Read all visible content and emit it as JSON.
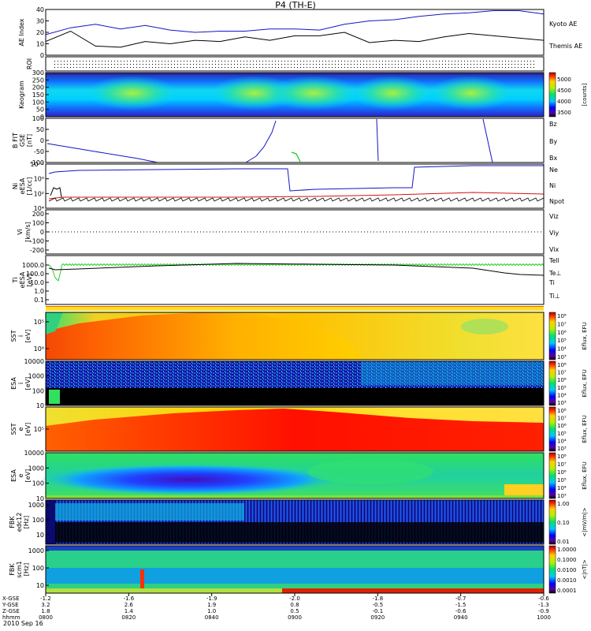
{
  "title": "P4 (TH-E)",
  "date": "2010 Sep 16",
  "colors": {
    "blue": "#1414c8",
    "red": "#d21414",
    "green": "#14c814",
    "black": "#000000"
  },
  "chart_data": [
    {
      "type": "line",
      "panel": "ae",
      "ylabel": "AE Index",
      "ylim": [
        0,
        40
      ],
      "yticks": [
        "0",
        "10",
        "20",
        "30",
        "40"
      ],
      "series": [
        {
          "name": "Kyoto AE",
          "color": "blue",
          "x": [
            "09:00",
            "09:03",
            "09:06",
            "09:09",
            "09:12",
            "09:15",
            "09:18",
            "09:21",
            "09:24",
            "09:27",
            "09:30",
            "09:33",
            "09:36",
            "09:39",
            "09:42",
            "09:45",
            "09:48",
            "09:51",
            "09:54",
            "09:57",
            "10:00"
          ],
          "values": [
            18,
            24,
            27,
            23,
            26,
            22,
            20,
            21,
            21,
            23,
            23,
            22,
            27,
            30,
            31,
            34,
            36,
            37,
            39,
            39,
            36
          ]
        },
        {
          "name": "Themis AE",
          "color": "black",
          "x": [
            "09:00",
            "09:03",
            "09:06",
            "09:09",
            "09:12",
            "09:15",
            "09:18",
            "09:21",
            "09:24",
            "09:27",
            "09:30",
            "09:33",
            "09:36",
            "09:39",
            "09:42",
            "09:45",
            "09:48",
            "09:51",
            "09:54",
            "09:57",
            "10:00"
          ],
          "values": [
            12,
            21,
            8,
            7,
            12,
            10,
            13,
            12,
            16,
            13,
            17,
            17,
            20,
            11,
            13,
            12,
            16,
            19,
            17,
            15,
            13
          ]
        }
      ]
    },
    {
      "type": "table",
      "panel": "roi",
      "ylabel": "ROI"
    },
    {
      "type": "heatmap",
      "panel": "keogram",
      "ylabel": "Keogram",
      "yticks": [
        "0",
        "50",
        "100",
        "150",
        "200",
        "250",
        "300"
      ],
      "colorbar": [
        "3500",
        "4000",
        "4500",
        "5000"
      ],
      "colorbar_label": "[counts]"
    },
    {
      "type": "line",
      "panel": "bfield",
      "ylabel": "B FIT GSE [nT]",
      "ylim": [
        -100,
        100
      ],
      "yticks": [
        "-100",
        "-50",
        "0",
        "50",
        "100"
      ],
      "series": [
        {
          "name": "Bz",
          "color": "red"
        },
        {
          "name": "By",
          "color": "green"
        },
        {
          "name": "Bx",
          "color": "blue"
        }
      ]
    },
    {
      "type": "line",
      "panel": "density",
      "ylabel": "Ni eESA [1/cc]",
      "yticks": [
        "10⁴",
        "10²",
        "10⁰",
        "10⁻²"
      ],
      "series": [
        {
          "name": "Ne",
          "color": "red"
        },
        {
          "name": "Ni",
          "color": "black"
        },
        {
          "name": "Npot",
          "color": "blue"
        }
      ]
    },
    {
      "type": "line",
      "panel": "velocity",
      "ylabel": "Vi [km/s]",
      "ylim": [
        -300,
        300
      ],
      "yticks": [
        "-200",
        "-100",
        "0",
        "100",
        "200"
      ],
      "series": [
        {
          "name": "Viz",
          "color": "red"
        },
        {
          "name": "Viy",
          "color": "green"
        },
        {
          "name": "Vix",
          "color": "blue"
        }
      ]
    },
    {
      "type": "line",
      "panel": "temperature",
      "ylabel": "Ti eESA [eV]",
      "yticks": [
        "1000.0",
        "100.0",
        "10.0",
        "1.0",
        "0.1"
      ],
      "series": [
        {
          "name": "Tell",
          "color": "black"
        },
        {
          "name": "Te⊥",
          "color": "red"
        },
        {
          "name": "Ti",
          "color": "green"
        },
        {
          "name": "Ti⊥",
          "color": "blue"
        }
      ]
    },
    {
      "type": "heatmap",
      "panel": "sst_i",
      "ylabel": "SST i [eV]",
      "yticks": [
        "10⁵",
        "10⁶"
      ],
      "colorbar": [
        "10³",
        "10⁴",
        "10⁵",
        "10⁶",
        "10⁷",
        "10⁸"
      ],
      "colorbar_label": "Eflux, EFU"
    },
    {
      "type": "heatmap",
      "panel": "esa_i",
      "ylabel": "ESA i [eV]",
      "yticks": [
        "10",
        "100",
        "1000",
        "10000"
      ],
      "colorbar": [
        "10³",
        "10⁴",
        "10⁵",
        "10⁶",
        "10⁷",
        "10⁸"
      ],
      "colorbar_label": "Eflux, EFU"
    },
    {
      "type": "heatmap",
      "panel": "sst_e",
      "ylabel": "SST e [eV]",
      "yticks": [
        "10⁵"
      ],
      "colorbar": [
        "10³",
        "10⁴",
        "10⁵",
        "10⁶",
        "10⁷",
        "10⁸"
      ],
      "colorbar_label": "Eflux, EFU"
    },
    {
      "type": "heatmap",
      "panel": "esa_e",
      "ylabel": "ESA e [eV]",
      "yticks": [
        "10",
        "100",
        "1000",
        "10000"
      ],
      "colorbar": [
        "10³",
        "10⁴",
        "10⁵",
        "10⁶",
        "10⁷",
        "10⁸"
      ],
      "colorbar_label": "Eflux, EFU"
    },
    {
      "type": "heatmap",
      "panel": "fbk_e",
      "ylabel": "FBK edc12 [Hz]",
      "yticks": [
        "10",
        "100",
        "1000"
      ],
      "colorbar": [
        "0.01",
        "0.10",
        "1.00"
      ],
      "colorbar_label": "<|mV/m|>"
    },
    {
      "type": "heatmap",
      "panel": "fbk_b",
      "ylabel": "FBK scm1 [Hz]",
      "yticks": [
        "10",
        "100",
        "1000"
      ],
      "colorbar": [
        "0.0001",
        "0.0010",
        "0.0100",
        "0.1000",
        "1.0000"
      ],
      "colorbar_label": "<|nT|>"
    }
  ],
  "time_axis": {
    "rows": [
      {
        "label": "X-GSE",
        "values": [
          "-1.2",
          "-1.6",
          "-1.9",
          "-2.0",
          "-1.8",
          "-0.7",
          "-0.6"
        ]
      },
      {
        "label": "Y-GSE",
        "values": [
          "3.2",
          "2.6",
          "1.9",
          "0.8",
          "-0.5",
          "-1.5",
          "-1.3"
        ]
      },
      {
        "label": "Z-GSE",
        "values": [
          "1.8",
          "1.4",
          "1.0",
          "0.5",
          "-0.1",
          "-0.6",
          "-0.9"
        ]
      },
      {
        "label": "hhmm",
        "values": [
          "0800",
          "0820",
          "0840",
          "0900",
          "0920",
          "0940",
          "1000"
        ]
      }
    ]
  }
}
